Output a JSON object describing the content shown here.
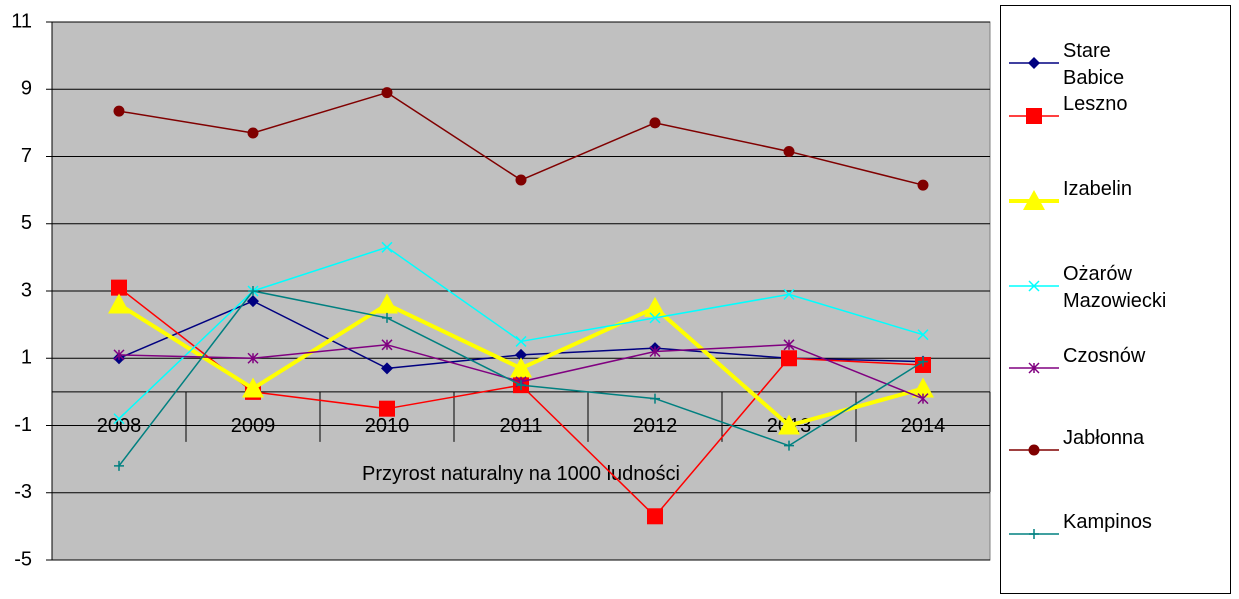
{
  "chart_data": {
    "type": "line",
    "x_label": "Przyrost naturalny na 1000 ludności",
    "categories": [
      "2008",
      "2009",
      "2010",
      "2011",
      "2012",
      "2013",
      "2014"
    ],
    "ylim": [
      -5,
      11
    ],
    "yticks": [
      -5,
      -3,
      -1,
      1,
      3,
      5,
      7,
      9,
      11
    ],
    "grid": true,
    "legend": "right",
    "series": [
      {
        "name": "Stare Babice",
        "color": "#000080",
        "marker": "diamond",
        "line_width": 1.5,
        "values": [
          1.0,
          2.7,
          0.7,
          1.1,
          1.3,
          1.0,
          0.9
        ]
      },
      {
        "name": "Leszno",
        "color": "#ff0000",
        "marker": "square",
        "line_width": 1.5,
        "values": [
          3.1,
          0.0,
          -0.5,
          0.2,
          -3.7,
          1.0,
          0.8
        ]
      },
      {
        "name": "Izabelin",
        "color": "#ffff00",
        "marker": "triangle",
        "line_width": 4,
        "values": [
          2.6,
          0.1,
          2.6,
          0.7,
          2.5,
          -1.0,
          0.1
        ]
      },
      {
        "name": "Ożarów Mazowiecki",
        "color": "#00ffff",
        "marker": "x",
        "line_width": 1.5,
        "values": [
          -0.8,
          3.0,
          4.3,
          1.5,
          2.2,
          2.9,
          1.7
        ]
      },
      {
        "name": "Czosnów",
        "color": "#800080",
        "marker": "star",
        "line_width": 1.5,
        "values": [
          1.1,
          1.0,
          1.4,
          0.3,
          1.2,
          1.4,
          -0.2
        ]
      },
      {
        "name": "Jabłonna",
        "color": "#800000",
        "marker": "circle",
        "line_width": 1.5,
        "values": [
          8.35,
          7.7,
          8.9,
          6.3,
          8.0,
          7.15,
          6.15
        ]
      },
      {
        "name": "Kampinos",
        "color": "#008080",
        "marker": "plus",
        "line_width": 1.5,
        "values": [
          -2.2,
          3.0,
          2.2,
          0.2,
          -0.2,
          -1.6,
          0.9
        ]
      }
    ]
  }
}
